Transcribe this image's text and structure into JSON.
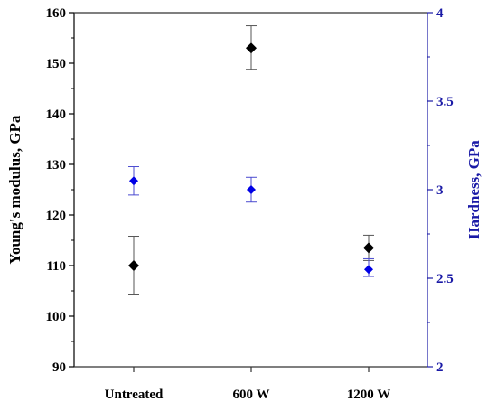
{
  "chart_data": {
    "type": "scatter",
    "categories": [
      "Untreated",
      "600 W",
      "1200 W"
    ],
    "ylabel": "Young's modulus, GPa",
    "y2label": "Hardness, GPa",
    "ylim": [
      90,
      160
    ],
    "y2lim": [
      2,
      4
    ],
    "yticks": [
      "90",
      "100",
      "110",
      "120",
      "130",
      "140",
      "150",
      "160"
    ],
    "y2ticks": [
      "2",
      "2.5",
      "3",
      "3.5",
      "4"
    ],
    "grid": false,
    "series": [
      {
        "axis": "left",
        "marker": "diamond",
        "color": "#000000",
        "values": [
          110,
          153,
          113.5
        ],
        "error_low": [
          104.2,
          148.8,
          111
        ],
        "error_high": [
          115.8,
          157.4,
          116
        ]
      },
      {
        "axis": "right",
        "marker": "diamond",
        "color": "#0000e6",
        "values": [
          3.05,
          3.0,
          2.55
        ],
        "error_low": [
          2.97,
          2.93,
          2.51
        ],
        "error_high": [
          3.13,
          3.07,
          2.61
        ]
      }
    ],
    "colors": {
      "left_axis": "#000000",
      "right_axis": "#1a1aa6",
      "frame": "#333333"
    }
  }
}
